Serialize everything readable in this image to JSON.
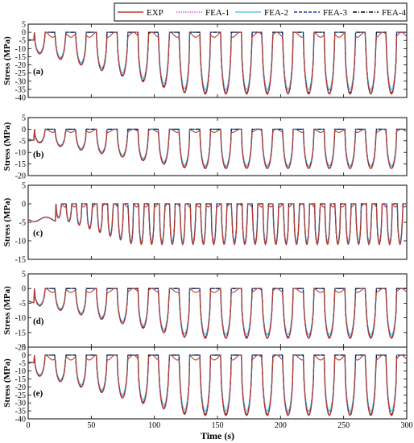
{
  "chart_data": {
    "type": "line",
    "xlabel": "Time (s)",
    "ylabel": "Stress (MPa)",
    "xlim": [
      0,
      300
    ],
    "xticks": [
      0,
      50,
      100,
      150,
      200,
      250,
      300
    ],
    "legend": {
      "placement": "top-right",
      "entries": [
        {
          "name": "EXP",
          "color": "#c0392b",
          "style": "solid"
        },
        {
          "name": "FEA-1",
          "color": "#cc44cc",
          "style": "dotted"
        },
        {
          "name": "FEA-2",
          "color": "#66c8e8",
          "style": "solid"
        },
        {
          "name": "FEA-3",
          "color": "#2a3aa0",
          "style": "dashed"
        },
        {
          "name": "FEA-4",
          "color": "#111111",
          "style": "dashdot"
        }
      ]
    },
    "panels": [
      {
        "label": "(a)",
        "ylim": [
          -40,
          5
        ],
        "yticks": [
          5,
          0,
          -5,
          -10,
          -15,
          -20,
          -25,
          -30,
          -35,
          -40
        ],
        "cycle_start_s": 5,
        "cycle_period_s": 16.4,
        "cycles": 18,
        "peak_depth_mpa": 38
      },
      {
        "label": "(b)",
        "ylim": [
          -20,
          5
        ],
        "yticks": [
          5,
          0,
          -5,
          -10,
          -15,
          -20
        ],
        "cycle_start_s": 5,
        "cycle_period_s": 16.4,
        "cycles": 18,
        "peak_depth_mpa": 17
      },
      {
        "label": "(c)",
        "ylim": [
          -15,
          5
        ],
        "yticks": [
          5,
          0,
          -5,
          -10,
          -15
        ],
        "cycle_start_s": 22,
        "cycle_period_s": 8.2,
        "cycles": 34,
        "peak_depth_mpa": 11
      },
      {
        "label": "(d)",
        "ylim": [
          -20,
          5
        ],
        "yticks": [
          5,
          0,
          -5,
          -10,
          -15,
          -20
        ],
        "cycle_start_s": 5,
        "cycle_period_s": 16.4,
        "cycles": 18,
        "peak_depth_mpa": 17
      },
      {
        "label": "(e)",
        "ylim": [
          -40,
          5
        ],
        "yticks": [
          5,
          0,
          -5,
          -10,
          -15,
          -20,
          -25,
          -30,
          -35,
          -40
        ],
        "cycle_start_s": 5,
        "cycle_period_s": 16.4,
        "cycles": 18,
        "peak_depth_mpa": 38
      }
    ]
  }
}
